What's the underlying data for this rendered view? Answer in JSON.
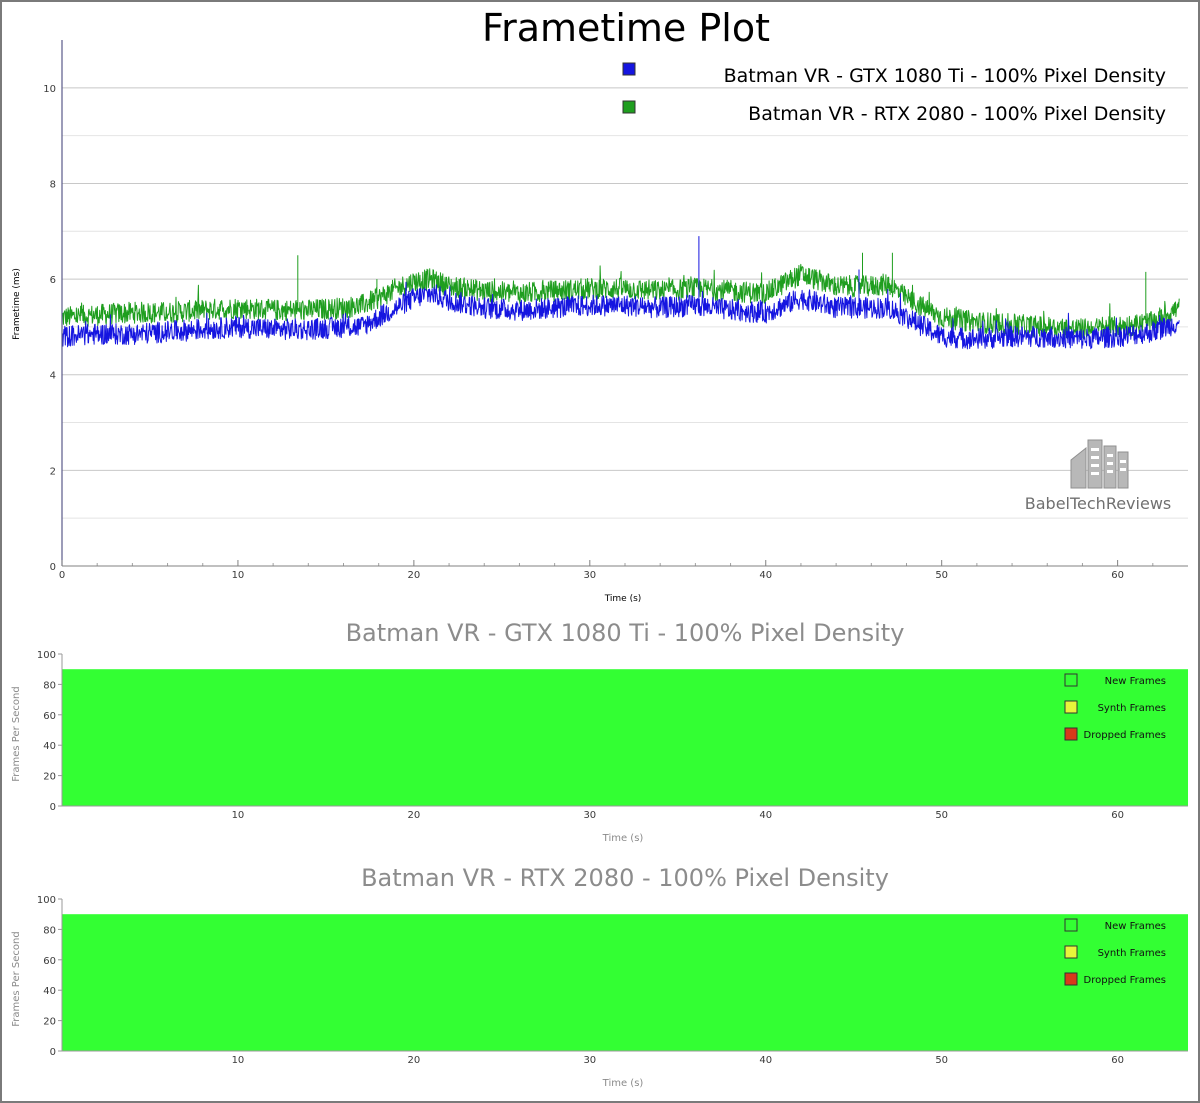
{
  "chart_data": [
    {
      "type": "line",
      "title": "Frametime Plot",
      "xlabel": "Time (s)",
      "ylabel": "Frametime (ms)",
      "xlim": [
        0,
        64
      ],
      "ylim": [
        0,
        11
      ],
      "x_ticks": [
        0,
        10,
        20,
        30,
        40,
        50,
        60
      ],
      "y_ticks": [
        0,
        2,
        4,
        6,
        8,
        10
      ],
      "grid": true,
      "legend_position": "top-right",
      "series": [
        {
          "name": "Batman VR - GTX 1080 Ti - 100% Pixel Density",
          "color": "#1515e0",
          "x": [
            0,
            2,
            4,
            6,
            8,
            10,
            12,
            14,
            16,
            17,
            18,
            19,
            20,
            21,
            22,
            24,
            26,
            28,
            30,
            32,
            34,
            36,
            38,
            40,
            42,
            44,
            46,
            47,
            48,
            50,
            52,
            54,
            56,
            58,
            60,
            62,
            63.5
          ],
          "values": [
            4.8,
            4.85,
            4.85,
            4.9,
            4.95,
            5.0,
            4.95,
            4.95,
            5.0,
            5.0,
            5.2,
            5.4,
            5.6,
            5.7,
            5.55,
            5.4,
            5.35,
            5.4,
            5.45,
            5.45,
            5.4,
            5.45,
            5.35,
            5.3,
            5.6,
            5.4,
            5.4,
            5.4,
            5.2,
            4.8,
            4.75,
            4.8,
            4.8,
            4.75,
            4.8,
            4.9,
            5.1
          ],
          "spikes": [
            [
              36.2,
              6.9
            ],
            [
              45.3,
              6.2
            ]
          ]
        },
        {
          "name": "Batman VR - RTX 2080 - 100% Pixel Density",
          "color": "#1f9e1f",
          "x": [
            0,
            2,
            4,
            6,
            8,
            10,
            12,
            14,
            16,
            17,
            18,
            19,
            20,
            21,
            22,
            24,
            26,
            28,
            30,
            32,
            34,
            36,
            38,
            40,
            42,
            44,
            46,
            47,
            48,
            50,
            52,
            54,
            56,
            58,
            60,
            62,
            63.5
          ],
          "values": [
            5.2,
            5.25,
            5.3,
            5.3,
            5.35,
            5.4,
            5.35,
            5.35,
            5.4,
            5.45,
            5.6,
            5.8,
            5.95,
            6.0,
            5.85,
            5.75,
            5.7,
            5.75,
            5.8,
            5.8,
            5.75,
            5.8,
            5.75,
            5.7,
            6.1,
            5.85,
            5.85,
            5.9,
            5.6,
            5.2,
            5.1,
            5.05,
            5.0,
            4.95,
            5.0,
            5.1,
            5.4
          ],
          "spikes": [
            [
              13.4,
              6.5
            ],
            [
              17.9,
              6.0
            ],
            [
              45.5,
              6.55
            ],
            [
              47.2,
              6.55
            ],
            [
              61.6,
              6.15
            ]
          ]
        }
      ]
    },
    {
      "type": "area",
      "title": "Batman VR - GTX 1080 Ti - 100% Pixel Density",
      "xlabel": "Time (s)",
      "ylabel": "Frames Per Second",
      "xlim": [
        0,
        64
      ],
      "ylim": [
        0,
        100
      ],
      "x_ticks": [
        10,
        20,
        30,
        40,
        50,
        60
      ],
      "y_ticks": [
        0,
        20,
        40,
        60,
        80,
        100
      ],
      "legend_position": "top-right",
      "series": [
        {
          "name": "New Frames",
          "color": "#33ff33",
          "x": [
            0,
            64
          ],
          "values": [
            90,
            90
          ]
        },
        {
          "name": "Synth Frames",
          "color": "#e8f53a",
          "x": [
            0,
            64
          ],
          "values": [
            0,
            0
          ]
        },
        {
          "name": "Dropped Frames",
          "color": "#d83a1a",
          "x": [
            0,
            64
          ],
          "values": [
            0,
            0
          ]
        }
      ]
    },
    {
      "type": "area",
      "title": "Batman VR - RTX 2080 - 100% Pixel Density",
      "xlabel": "Time (s)",
      "ylabel": "Frames Per Second",
      "xlim": [
        0,
        64
      ],
      "ylim": [
        0,
        100
      ],
      "x_ticks": [
        10,
        20,
        30,
        40,
        50,
        60
      ],
      "y_ticks": [
        0,
        20,
        40,
        60,
        80,
        100
      ],
      "legend_position": "top-right",
      "series": [
        {
          "name": "New Frames",
          "color": "#33ff33",
          "x": [
            0,
            64
          ],
          "values": [
            90,
            90
          ]
        },
        {
          "name": "Synth Frames",
          "color": "#e8f53a",
          "x": [
            0,
            64
          ],
          "values": [
            0,
            0
          ]
        },
        {
          "name": "Dropped Frames",
          "color": "#d83a1a",
          "x": [
            0,
            64
          ],
          "values": [
            0,
            0
          ]
        }
      ]
    }
  ],
  "watermark": {
    "text": "BabelTechReviews",
    "icon": "building-logo-icon"
  }
}
